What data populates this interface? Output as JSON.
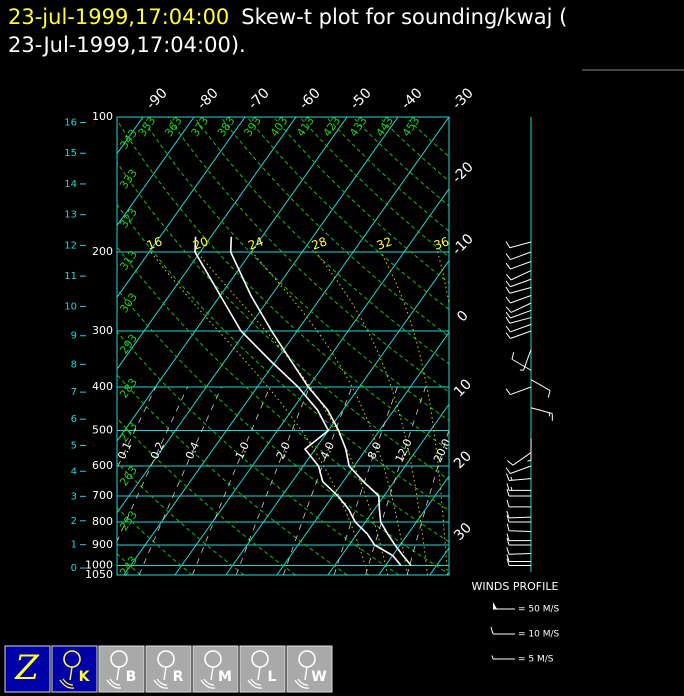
{
  "chart_data": {
    "type": "skew-t",
    "title_time": "23-jul-1999,17:04:00",
    "title": "Skew-t plot for sounding/kwaj (",
    "subtitle": "23-Jul-1999,17:04:00).",
    "ylim": [
      100,
      1050
    ],
    "yticks": [
      100,
      200,
      300,
      400,
      500,
      600,
      700,
      800,
      900,
      1000,
      1050
    ],
    "log_y": true,
    "xlim": [
      -95.1,
      -30
    ],
    "isotherms": [
      -90,
      -80,
      -70,
      -60,
      -50,
      -40,
      -30,
      -20,
      -10,
      0,
      10,
      20,
      30
    ],
    "height_ticks": [
      0,
      1,
      2,
      3,
      4,
      5,
      6,
      7,
      8,
      9,
      10,
      11,
      12,
      13,
      14,
      15,
      16
    ],
    "dry_adiabats": [
      243,
      253,
      263,
      273,
      283,
      293,
      303,
      313,
      323,
      333,
      343,
      353,
      363,
      373,
      383,
      393,
      403,
      413,
      423,
      433,
      443,
      453
    ],
    "moist_adiabats": [
      16,
      20,
      24,
      28,
      32,
      36
    ],
    "mixing_ratios": [
      {
        "value": 0.1,
        "label": "0.1"
      },
      {
        "value": 0.2,
        "label": "0.2"
      },
      {
        "value": 0.4,
        "label": "0.4"
      },
      {
        "value": 1,
        "label": "1.0"
      },
      {
        "value": 2,
        "label": "2.0"
      },
      {
        "value": 4,
        "label": "4.0"
      },
      {
        "value": 8,
        "label": "8.0"
      },
      {
        "value": 12,
        "label": "12.0"
      },
      {
        "value": 20,
        "label": "20.0"
      }
    ],
    "pressure": [
      185,
      200,
      250,
      300,
      350,
      400,
      450,
      500,
      550,
      600,
      650,
      700,
      750,
      800,
      850,
      900,
      950,
      1000
    ],
    "series": [
      {
        "color": "#ffffff",
        "values": [
          -56,
          -54,
          -44,
          -35,
          -27,
          -20,
          -13,
          -8,
          -4,
          -1,
          4,
          9,
          11,
          13,
          16,
          19,
          22,
          25
        ]
      },
      {
        "color": "#ffffff",
        "values": [
          -63,
          -61,
          -50,
          -41,
          -31,
          -22,
          -15,
          -10,
          -12,
          -7,
          -4,
          1,
          5,
          8,
          12,
          15,
          20,
          23
        ]
      }
    ],
    "winds": {
      "title": "WINDS PROFILE",
      "pressure": [
        190,
        200,
        210,
        220,
        230,
        240,
        250,
        260,
        270,
        280,
        290,
        300,
        330,
        367,
        385,
        400,
        445,
        520,
        560,
        600,
        640,
        680,
        700,
        740,
        780,
        800,
        840,
        880,
        900,
        940,
        980,
        1000
      ],
      "direction": [
        255,
        250,
        250,
        245,
        250,
        255,
        250,
        245,
        250,
        255,
        250,
        250,
        200,
        300,
        120,
        250,
        105,
        180,
        235,
        250,
        265,
        270,
        270,
        270,
        268,
        270,
        272,
        270,
        270,
        268,
        270,
        270
      ],
      "speed": [
        10,
        12,
        12,
        10,
        12,
        10,
        12,
        10,
        12,
        10,
        8,
        8,
        5,
        10,
        10,
        8,
        15,
        3,
        8,
        12,
        15,
        15,
        12,
        12,
        12,
        12,
        10,
        10,
        10,
        12,
        10,
        10
      ],
      "scale": [
        {
          "value": 50,
          "label": "= 50 M/S"
        },
        {
          "value": 10,
          "label": "= 10 M/S"
        },
        {
          "value": 5,
          "label": "= 5 M/S"
        }
      ]
    }
  },
  "toolbar": {
    "buttons": [
      "Z",
      "K",
      "B",
      "R",
      "M",
      "L",
      "W"
    ]
  }
}
